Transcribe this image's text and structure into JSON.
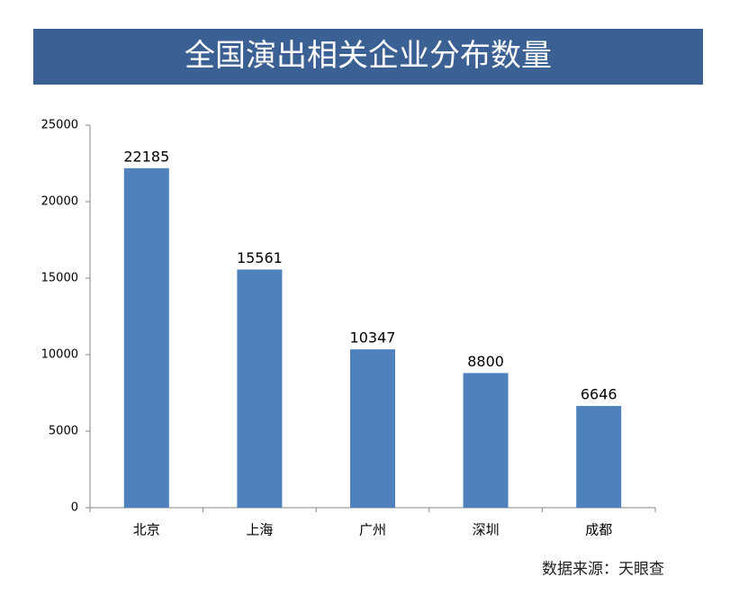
{
  "chart_data": {
    "type": "bar",
    "title": "全国演出相关企业分布数量",
    "categories": [
      "北京",
      "上海",
      "广州",
      "深圳",
      "成都"
    ],
    "values": [
      22185,
      15561,
      10347,
      8800,
      6646
    ],
    "color": "#4f81bd",
    "ylim": [
      0,
      25000
    ],
    "yticks": [
      0,
      5000,
      10000,
      15000,
      20000,
      25000
    ],
    "grid": false,
    "source": "数据来源：天眼查"
  }
}
